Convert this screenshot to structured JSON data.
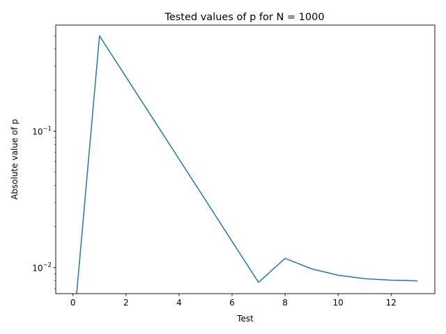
{
  "chart_data": {
    "type": "line",
    "title": "Tested values of p for N = 1000",
    "xlabel": "Test",
    "ylabel": "Absolute value of p",
    "yscale": "log",
    "xlim": [
      -0.65,
      13.65
    ],
    "ylim": [
      0.00645,
      0.6
    ],
    "grid": false,
    "x_ticks": [
      {
        "value": 0,
        "label": "0"
      },
      {
        "value": 2,
        "label": "2"
      },
      {
        "value": 4,
        "label": "4"
      },
      {
        "value": 6,
        "label": "6"
      },
      {
        "value": 8,
        "label": "8"
      },
      {
        "value": 10,
        "label": "10"
      },
      {
        "value": 12,
        "label": "12"
      }
    ],
    "y_ticks": [
      {
        "value": 0.01,
        "base": "10",
        "exp": "−2"
      },
      {
        "value": 0.1,
        "base": "10",
        "exp": "−1"
      }
    ],
    "y_minor_ticks": [
      0.007,
      0.008,
      0.009,
      0.02,
      0.03,
      0.04,
      0.05,
      0.06,
      0.07,
      0.08,
      0.09,
      0.2,
      0.3,
      0.4,
      0.5
    ],
    "series": [
      {
        "color": "#1f77b4",
        "x": [
          0,
          1,
          2,
          3,
          4,
          5,
          6,
          7,
          8,
          9,
          10,
          11,
          12,
          13
        ],
        "y": [
          0,
          0.5,
          0.25,
          0.125,
          0.0625,
          0.03125,
          0.0156,
          0.0078,
          0.0117,
          0.0098,
          0.0088,
          0.0083,
          0.0081,
          0.008
        ]
      }
    ]
  }
}
